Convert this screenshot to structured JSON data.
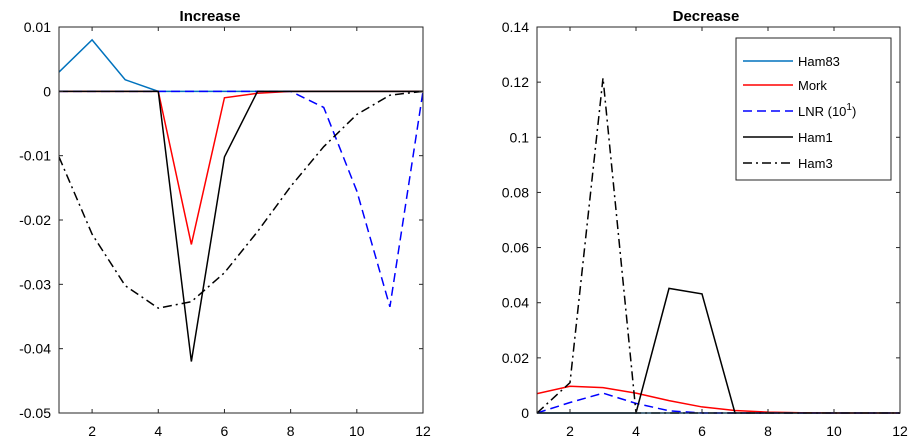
{
  "chart_data": [
    {
      "type": "line",
      "title": "Increase",
      "xlabel": "",
      "ylabel": "",
      "xlim": [
        1,
        12
      ],
      "ylim": [
        -0.05,
        0.01
      ],
      "xticks": [
        2,
        4,
        6,
        8,
        10,
        12
      ],
      "xtick_labels": [
        "2",
        "4",
        "6",
        "8",
        "10",
        "12"
      ],
      "yticks": [
        0.01,
        0,
        -0.01,
        -0.02,
        -0.03,
        -0.04,
        -0.05
      ],
      "ytick_labels": [
        "0.01",
        "0",
        "-0.01",
        "-0.02",
        "-0.03",
        "-0.04",
        "-0.05"
      ],
      "grid": false,
      "legend": "none",
      "series": [
        {
          "name": "Ham83",
          "color": "#0072BD",
          "style": "solid",
          "x": [
            1,
            2,
            3,
            4,
            5,
            6,
            7,
            8,
            9,
            10,
            11,
            12
          ],
          "values": [
            0.003,
            0.008,
            0.0018,
            0,
            0,
            0,
            0,
            0,
            0,
            0,
            0,
            0
          ]
        },
        {
          "name": "Mork",
          "color": "#FF0000",
          "style": "solid",
          "x": [
            1,
            2,
            3,
            4,
            5,
            6,
            7,
            8,
            9,
            10,
            11,
            12
          ],
          "values": [
            0,
            0,
            0,
            0,
            -0.0238,
            -0.001,
            -0.0003,
            0,
            0,
            0,
            0,
            0
          ]
        },
        {
          "name": "LNR (10^1)",
          "color": "#0000FF",
          "style": "dashed",
          "x": [
            1,
            2,
            3,
            4,
            5,
            6,
            7,
            8,
            9,
            10,
            11,
            12
          ],
          "values": [
            0,
            0,
            0,
            0,
            0,
            0,
            0,
            0,
            -0.0025,
            -0.0155,
            -0.0335,
            0
          ]
        },
        {
          "name": "Ham1",
          "color": "#000000",
          "style": "solid",
          "x": [
            1,
            2,
            3,
            4,
            5,
            6,
            7,
            8,
            9,
            10,
            11,
            12
          ],
          "values": [
            0,
            0,
            0,
            0,
            -0.042,
            -0.0102,
            0,
            0,
            0,
            0,
            0,
            0
          ]
        },
        {
          "name": "Ham3",
          "color": "#000000",
          "style": "dashdot",
          "x": [
            1,
            2,
            3,
            4,
            5,
            6,
            7,
            8,
            9,
            10,
            11,
            12
          ],
          "values": [
            -0.0102,
            -0.0222,
            -0.0302,
            -0.0337,
            -0.0327,
            -0.0282,
            -0.0218,
            -0.0148,
            -0.0086,
            -0.0036,
            -0.0006,
            0
          ]
        }
      ]
    },
    {
      "type": "line",
      "title": "Decrease",
      "xlabel": "",
      "ylabel": "",
      "xlim": [
        1,
        12
      ],
      "ylim": [
        0,
        0.14
      ],
      "xticks": [
        2,
        4,
        6,
        8,
        10,
        12
      ],
      "xtick_labels": [
        "2",
        "4",
        "6",
        "8",
        "10",
        "12"
      ],
      "yticks": [
        0.14,
        0.12,
        0.1,
        0.08,
        0.06,
        0.04,
        0.02,
        0
      ],
      "ytick_labels": [
        "0.14",
        "0.12",
        "0.1",
        "0.08",
        "0.06",
        "0.04",
        "0.02",
        "0"
      ],
      "grid": false,
      "legend": "top-right",
      "legend_entries": [
        {
          "label": "Ham83",
          "color": "#0072BD",
          "style": "solid"
        },
        {
          "label": "Mork",
          "color": "#FF0000",
          "style": "solid"
        },
        {
          "label": "LNR (10",
          "sup": "1",
          "label_end": ")",
          "color": "#0000FF",
          "style": "dashed"
        },
        {
          "label": "Ham1",
          "color": "#000000",
          "style": "solid"
        },
        {
          "label": "Ham3",
          "color": "#000000",
          "style": "dashdot"
        }
      ],
      "series": [
        {
          "name": "Ham83",
          "color": "#0072BD",
          "style": "solid",
          "x": [
            1,
            2,
            3,
            4,
            5,
            6,
            7,
            8,
            9,
            10,
            11,
            12
          ],
          "values": [
            0,
            0,
            0,
            0,
            0,
            0,
            0,
            0,
            0,
            0,
            0,
            0
          ]
        },
        {
          "name": "Mork",
          "color": "#FF0000",
          "style": "solid",
          "x": [
            1,
            2,
            3,
            4,
            5,
            6,
            7,
            8,
            9,
            10,
            11,
            12
          ],
          "values": [
            0.007,
            0.0097,
            0.0092,
            0.0072,
            0.0045,
            0.0022,
            0.0009,
            0.0003,
            0.0001,
            0,
            0,
            0
          ]
        },
        {
          "name": "LNR (10^1)",
          "color": "#0000FF",
          "style": "dashed",
          "x": [
            1,
            2,
            3,
            4,
            5,
            6,
            7,
            8,
            9,
            10,
            11,
            12
          ],
          "values": [
            0,
            0.0038,
            0.0072,
            0.0035,
            0.0008,
            0,
            0,
            0,
            0,
            0,
            0,
            0
          ]
        },
        {
          "name": "Ham1",
          "color": "#000000",
          "style": "solid",
          "x": [
            1,
            2,
            3,
            4,
            5,
            6,
            7,
            8,
            9,
            10,
            11,
            12
          ],
          "values": [
            0,
            0,
            0,
            0,
            0.0452,
            0.0432,
            0,
            0,
            0,
            0,
            0,
            0
          ]
        },
        {
          "name": "Ham3",
          "color": "#000000",
          "style": "dashdot",
          "x": [
            1,
            2,
            3,
            4,
            5,
            6,
            7,
            8,
            9,
            10,
            11,
            12
          ],
          "values": [
            0,
            0.011,
            0.1215,
            0,
            0,
            0,
            0,
            0,
            0,
            0,
            0,
            0
          ]
        }
      ]
    }
  ]
}
